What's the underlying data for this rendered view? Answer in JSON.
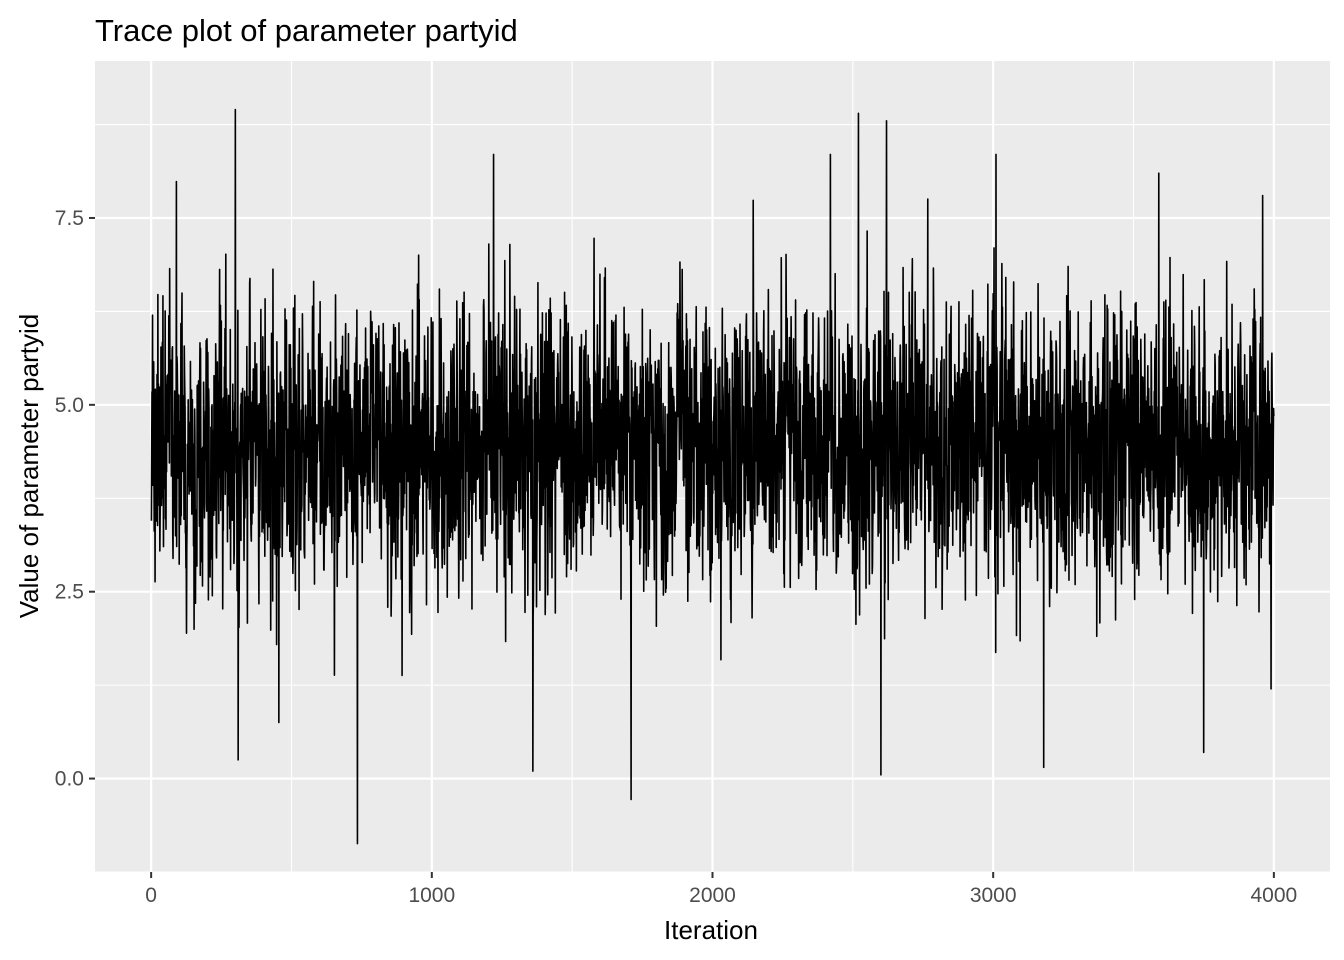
{
  "chart_data": {
    "type": "line",
    "title": "Trace plot of parameter partyid",
    "xlabel": "Iteration",
    "ylabel": "Value of parameter partyid",
    "xlim": [
      -200,
      4200
    ],
    "ylim": [
      -1.25,
      9.6
    ],
    "x_ticks": [
      0,
      1000,
      2000,
      3000,
      4000
    ],
    "x_tick_labels": [
      "0",
      "1000",
      "2000",
      "3000",
      "4000"
    ],
    "y_ticks": [
      0.0,
      2.5,
      5.0,
      7.5
    ],
    "y_tick_labels": [
      "0.0",
      "2.5",
      "5.0",
      "7.5"
    ],
    "panel_background": "#ebebeb",
    "grid": true,
    "line_color": "#000000",
    "series": [
      {
        "x": [
          1,
          4000
        ],
        "iterations": 4000,
        "mean": 4.45,
        "sd": 0.95,
        "min": -0.87,
        "max": 8.95,
        "notable_points": [
          {
            "x": 5,
            "y": 6.2
          },
          {
            "x": 300,
            "y": 8.95
          },
          {
            "x": 310,
            "y": 0.25
          },
          {
            "x": 455,
            "y": 0.75
          },
          {
            "x": 735,
            "y": -0.87
          },
          {
            "x": 1220,
            "y": 8.35
          },
          {
            "x": 1360,
            "y": 0.1
          },
          {
            "x": 1710,
            "y": -0.28
          },
          {
            "x": 2420,
            "y": 8.35
          },
          {
            "x": 2520,
            "y": 8.9
          },
          {
            "x": 2600,
            "y": 0.05
          },
          {
            "x": 2620,
            "y": 8.8
          },
          {
            "x": 3010,
            "y": 8.35
          },
          {
            "x": 3180,
            "y": 0.15
          },
          {
            "x": 3590,
            "y": 8.1
          },
          {
            "x": 3750,
            "y": 0.35
          },
          {
            "x": 3960,
            "y": 7.8
          },
          {
            "x": 3990,
            "y": 1.2
          },
          {
            "x": 4000,
            "y": 4.85
          }
        ]
      }
    ]
  }
}
